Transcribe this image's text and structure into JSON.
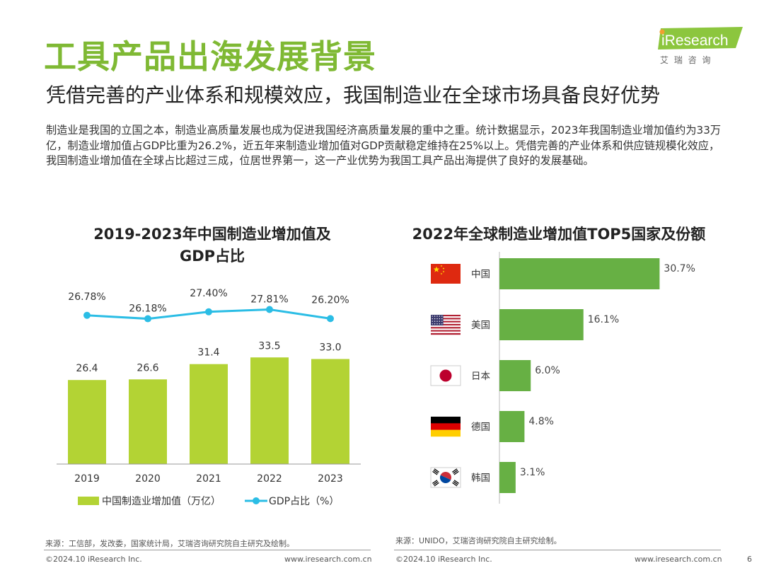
{
  "page": {
    "title": "工具产品出海发展背景",
    "subtitle": "凭借完善的产业体系和规模效应，我国制造业在全球市场具备良好优势",
    "body": "制造业是我国的立国之本，制造业高质量发展也成为促进我国经济高质量发展的重中之重。统计数据显示，2023年我国制造业增加值约为33万亿，制造业增加值占GDP比重为26.2%，近五年来制造业增加值对GDP贡献稳定维持在25%以上。凭借完善的产业体系和供应链规模化效应，我国制造业增加值在全球占比超过三成，位居世界第一，这一产业优势为我国工具产品出海提供了良好的发展基础。",
    "page_number": "6"
  },
  "logo": {
    "brand": "iResearch",
    "tagline": "艾 瑞 咨 询"
  },
  "colors": {
    "accent": "#7fb934",
    "bar_left": "#b3d334",
    "line": "#2bbde5",
    "bar_right": "#67b044"
  },
  "chart_data": [
    {
      "type": "bar",
      "title_line1": "2019-2023年中国制造业增加值及",
      "title_line2": "GDP占比",
      "categories": [
        "2019",
        "2020",
        "2021",
        "2022",
        "2023"
      ],
      "series": [
        {
          "name": "中国制造业增加值（万亿）",
          "kind": "bar",
          "values": [
            26.4,
            26.6,
            31.4,
            33.5,
            33.0
          ],
          "labels": [
            "26.4",
            "26.6",
            "31.4",
            "33.5",
            "33.0"
          ]
        },
        {
          "name": "GDP占比（%）",
          "kind": "line",
          "values": [
            26.78,
            26.18,
            27.4,
            27.81,
            26.2
          ],
          "labels": [
            "26.78%",
            "26.18%",
            "27.40%",
            "27.81%",
            "26.20%"
          ]
        }
      ],
      "ylim": [
        0,
        40
      ],
      "line_ylim": [
        20,
        30
      ]
    },
    {
      "type": "bar",
      "orientation": "horizontal",
      "title": "2022年全球制造业增加值TOP5国家及份额",
      "categories": [
        "中国",
        "美国",
        "日本",
        "德国",
        "韩国"
      ],
      "flags": [
        "china-flag-icon",
        "usa-flag-icon",
        "japan-flag-icon",
        "germany-flag-icon",
        "korea-flag-icon"
      ],
      "values": [
        30.7,
        16.1,
        6.0,
        4.8,
        3.1
      ],
      "labels": [
        "30.7%",
        "16.1%",
        "6.0%",
        "4.8%",
        "3.1%"
      ],
      "xlim": [
        0,
        32
      ]
    }
  ],
  "sources": {
    "left": "来源：工信部，发改委，国家统计局，艾瑞咨询研究院自主研究及绘制。",
    "right": "来源：UNIDO，艾瑞咨询研究院自主研究绘制。"
  },
  "footer": {
    "copyright_left": "©2024.10 iResearch Inc.",
    "url_left": "www.iresearch.com.cn",
    "copyright_right": "©2024.10 iResearch Inc.",
    "url_right": "www.iresearch.com.cn"
  }
}
